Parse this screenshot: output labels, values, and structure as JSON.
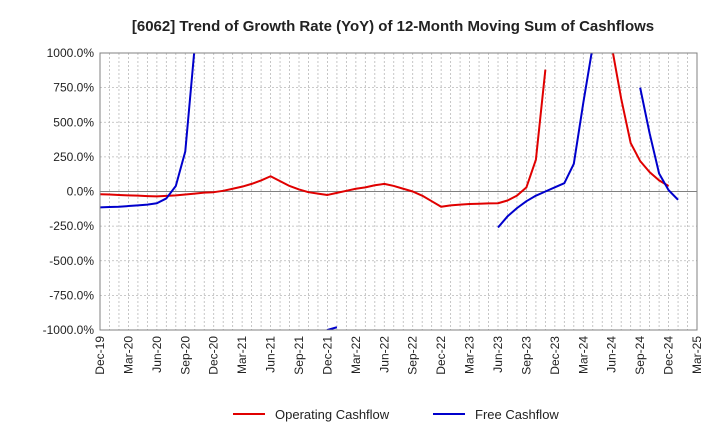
{
  "chart_data": {
    "type": "line",
    "title": "[6062]  Trend of Growth Rate (YoY) of 12-Month Moving Sum of Cashflows",
    "xlabel": "",
    "ylabel": "",
    "ylim": [
      -1000,
      1000
    ],
    "y_ticks": [
      1000,
      750,
      500,
      250,
      0,
      -250,
      -500,
      -750,
      -1000
    ],
    "y_tick_labels": [
      "1000.0%",
      "750.0%",
      "500.0%",
      "250.0%",
      "0.0%",
      "-250.0%",
      "-500.0%",
      "-750.0%",
      "-1000.0%"
    ],
    "x_tick_labels": [
      "Dec-19",
      "Mar-20",
      "Jun-20",
      "Sep-20",
      "Dec-20",
      "Mar-21",
      "Jun-21",
      "Sep-21",
      "Dec-21",
      "Mar-22",
      "Jun-22",
      "Sep-22",
      "Dec-22",
      "Mar-23",
      "Jun-23",
      "Sep-23",
      "Dec-23",
      "Mar-24",
      "Jun-24",
      "Sep-24",
      "Dec-24",
      "Mar-25"
    ],
    "x": [
      "Dec-19",
      "Jan-20",
      "Feb-20",
      "Mar-20",
      "Apr-20",
      "May-20",
      "Jun-20",
      "Jul-20",
      "Aug-20",
      "Sep-20",
      "Oct-20",
      "Nov-20",
      "Dec-20",
      "Jan-21",
      "Feb-21",
      "Mar-21",
      "Apr-21",
      "May-21",
      "Jun-21",
      "Jul-21",
      "Aug-21",
      "Sep-21",
      "Oct-21",
      "Nov-21",
      "Dec-21",
      "Jan-22",
      "Feb-22",
      "Mar-22",
      "Apr-22",
      "May-22",
      "Jun-22",
      "Jul-22",
      "Aug-22",
      "Sep-22",
      "Oct-22",
      "Nov-22",
      "Dec-22",
      "Jan-23",
      "Feb-23",
      "Mar-23",
      "Apr-23",
      "May-23",
      "Jun-23",
      "Jul-23",
      "Aug-23",
      "Sep-23",
      "Oct-23",
      "Nov-23",
      "Dec-23",
      "Jan-24",
      "Feb-24",
      "Mar-24",
      "Apr-24",
      "May-24",
      "Jun-24",
      "Jul-24",
      "Aug-24",
      "Sep-24",
      "Oct-24",
      "Nov-24",
      "Dec-24",
      "Jan-25",
      "Feb-25",
      "Mar-25"
    ],
    "legend_position": "bottom",
    "grid": true,
    "series": [
      {
        "name": "Operating Cashflow",
        "color": "#e00000",
        "values": [
          -20,
          -22,
          -25,
          -28,
          -30,
          -33,
          -35,
          -32,
          -28,
          -22,
          -15,
          -8,
          -5,
          5,
          20,
          35,
          55,
          80,
          110,
          75,
          40,
          15,
          -5,
          -15,
          -25,
          -10,
          5,
          20,
          30,
          45,
          55,
          40,
          20,
          0,
          -30,
          -70,
          -110,
          -100,
          -95,
          -90,
          -88,
          -86,
          -85,
          -65,
          -30,
          30,
          230,
          880,
          null,
          null,
          null,
          null,
          null,
          null,
          1050,
          670,
          350,
          220,
          140,
          80,
          40,
          null,
          null,
          null
        ]
      },
      {
        "name": "Free Cashflow",
        "color": "#0000cc",
        "values": [
          -115,
          -112,
          -110,
          -105,
          -100,
          -95,
          -85,
          -50,
          40,
          290,
          1050,
          null,
          null,
          null,
          null,
          null,
          null,
          null,
          null,
          null,
          null,
          null,
          null,
          -1050,
          -1000,
          -980,
          null,
          null,
          null,
          null,
          null,
          null,
          null,
          null,
          null,
          null,
          null,
          null,
          null,
          null,
          null,
          null,
          -260,
          -180,
          -120,
          -70,
          -30,
          0,
          30,
          60,
          200,
          640,
          1050,
          null,
          null,
          null,
          null,
          750,
          420,
          130,
          10,
          -60,
          null,
          null
        ]
      }
    ]
  }
}
